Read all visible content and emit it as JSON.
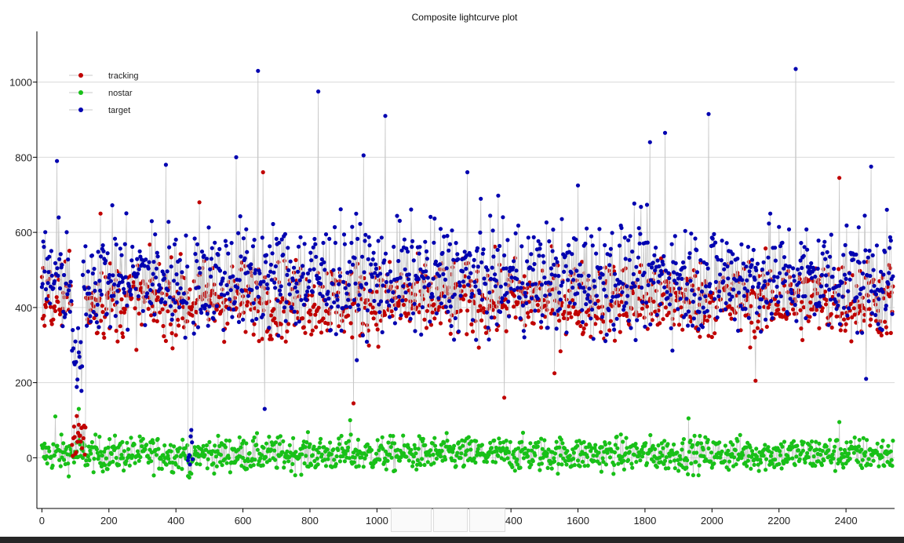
{
  "colors": {
    "tracking": "#c00000",
    "nostar": "#18c018",
    "target": "#0000b0",
    "connector": "#c8c8c8",
    "grid": "#d9d9d9",
    "axis": "#000000"
  },
  "chart_data": {
    "type": "line",
    "title": "Composite lightcurve plot",
    "xlabel": "",
    "ylabel": "",
    "xlim": [
      -15,
      2545
    ],
    "ylim": [
      -135,
      1135
    ],
    "xticks": [
      0,
      200,
      400,
      600,
      800,
      1000,
      1200,
      1400,
      1600,
      1800,
      2000,
      2200,
      2400
    ],
    "yticks": [
      0,
      200,
      400,
      600,
      800,
      1000
    ],
    "grid": "horizontal",
    "legend_position": "top-left",
    "markers": "filled circles joined by thin lines",
    "series": [
      {
        "name": "tracking",
        "x_range": [
          0,
          2540
        ],
        "typical_range": [
          270,
          560
        ],
        "typical_center": 420,
        "dip_near_x": [
          [
            90,
            130,
            60
          ]
        ],
        "notable_points": [
          [
            175,
            650
          ],
          [
            470,
            680
          ],
          [
            660,
            760
          ],
          [
            930,
            145
          ],
          [
            1380,
            160
          ],
          [
            1530,
            225
          ],
          [
            2130,
            205
          ],
          [
            2380,
            745
          ]
        ]
      },
      {
        "name": "nostar",
        "x_range": [
          0,
          2540
        ],
        "typical_range": [
          -50,
          80
        ],
        "typical_center": 10,
        "dip_near_x": [
          [
            440,
            450,
            -30
          ]
        ],
        "notable_points": [
          [
            40,
            110
          ],
          [
            110,
            130
          ],
          [
            920,
            100
          ],
          [
            1930,
            105
          ],
          [
            2380,
            95
          ]
        ]
      },
      {
        "name": "target",
        "x_range": [
          0,
          2540
        ],
        "typical_range": [
          280,
          700
        ],
        "typical_center": 480,
        "dip_near_x": [
          [
            90,
            120,
            250
          ],
          [
            435,
            450,
            20
          ]
        ],
        "notable_points": [
          [
            45,
            790
          ],
          [
            370,
            780
          ],
          [
            580,
            800
          ],
          [
            645,
            1030
          ],
          [
            665,
            130
          ],
          [
            825,
            975
          ],
          [
            960,
            805
          ],
          [
            1025,
            910
          ],
          [
            1270,
            760
          ],
          [
            1600,
            725
          ],
          [
            1815,
            840
          ],
          [
            1860,
            865
          ],
          [
            1990,
            915
          ],
          [
            2250,
            1075
          ],
          [
            2250,
            1035
          ],
          [
            2460,
            210
          ],
          [
            2475,
            775
          ]
        ]
      }
    ],
    "estimated_points_per_series": 2540
  }
}
